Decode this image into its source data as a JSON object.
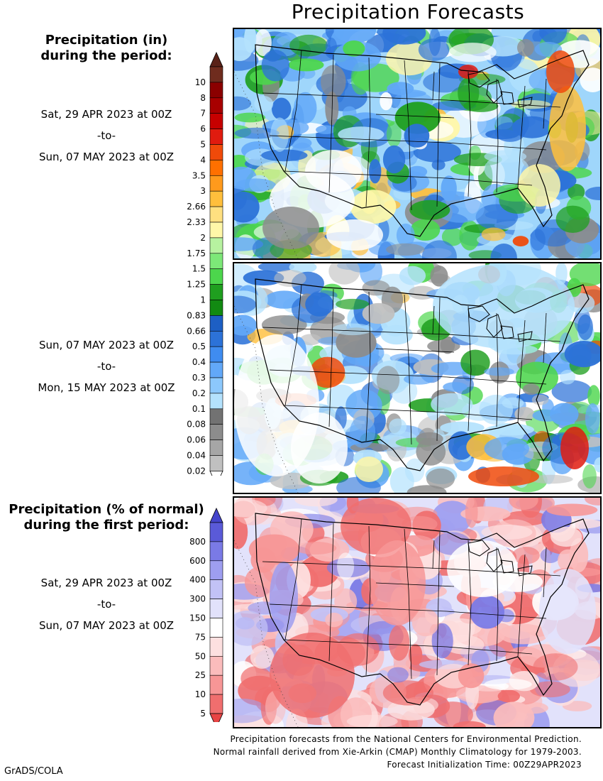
{
  "title": "Precipitation Forecasts",
  "top_section": {
    "header": [
      "Precipitation (in)",
      "during the period:"
    ],
    "period1": {
      "start": "Sat, 29 APR 2023 at 00Z",
      "to": "-to-",
      "end": "Sun, 07 MAY 2023 at 00Z"
    },
    "period2": {
      "start": "Sun, 07 MAY 2023 at 00Z",
      "to": "-to-",
      "end": "Mon, 15 MAY 2023 at 00Z"
    },
    "legend": {
      "labels": [
        "10",
        "8",
        "7",
        "6",
        "5",
        "4",
        "3.5",
        "3",
        "2.66",
        "2.33",
        "2",
        "1.75",
        "1.5",
        "1.25",
        "1",
        "0.83",
        "0.66",
        "0.5",
        "0.4",
        "0.3",
        "0.2",
        "0.1",
        "0.08",
        "0.06",
        "0.04",
        "0.02"
      ],
      "colors": [
        "#6f2c1e",
        "#8b0000",
        "#a80000",
        "#c60000",
        "#e01b0f",
        "#f04a0a",
        "#ff7000",
        "#ff9a1c",
        "#ffbf3c",
        "#ffe080",
        "#fff7a8",
        "#b7f2a0",
        "#7de878",
        "#4cd64c",
        "#1f9f1f",
        "#128a12",
        "#1d5fc4",
        "#2c72d8",
        "#3f8cf0",
        "#62a8f8",
        "#8cc8fc",
        "#b4e2fd",
        "#727272",
        "#8c8c8c",
        "#a6a6a6",
        "#c0c0c0"
      ],
      "top_cap": "#5a2218"
    }
  },
  "bottom_section": {
    "header": [
      "Precipitation (% of normal)",
      "during the first period:"
    ],
    "period": {
      "start": "Sat, 29 APR 2023 at 00Z",
      "to": "-to-",
      "end": "Sun, 07 MAY 2023 at 00Z"
    },
    "legend": {
      "labels": [
        "800",
        "600",
        "400",
        "300",
        "150",
        "75",
        "50",
        "25",
        "10",
        "5"
      ],
      "colors": [
        "#5a5ad8",
        "#7a7ae6",
        "#9e9ef0",
        "#c2c2f6",
        "#e2e2fb",
        "#ffffff",
        "#fde0e0",
        "#fbbcbc",
        "#f79696",
        "#f06e6e"
      ],
      "top_cap": "#4545cc",
      "bottom_cap": "#e84444"
    }
  },
  "footer": {
    "line1": "Precipitation forecasts from the National Centers for Environmental Prediction.",
    "line2": "Normal rainfall derived from Xie-Arkin (CMAP) Monthly Climatology for 1979-2003.",
    "line3": "Forecast Initialization Time: 00Z29APR2023"
  },
  "credit": "GrADS/COLA"
}
